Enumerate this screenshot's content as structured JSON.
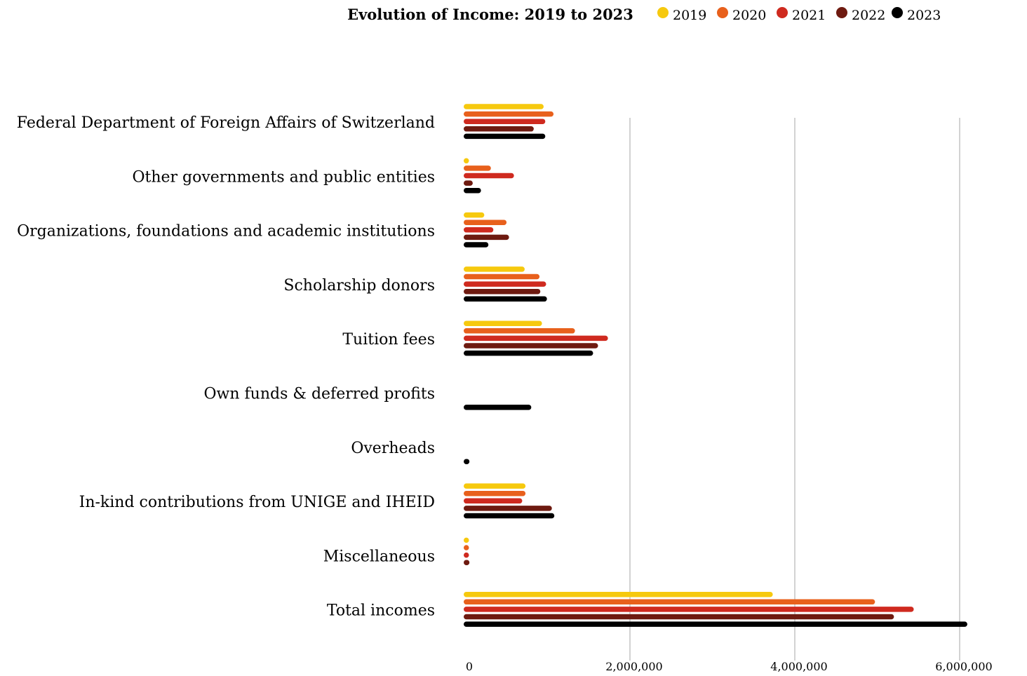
{
  "chart_data": {
    "type": "bar",
    "orientation": "horizontal",
    "title": "Evolution of Income: 2019 to 2023",
    "xlabel": "",
    "ylabel": "",
    "xlim": [
      0,
      6000000
    ],
    "x_ticks": [
      0,
      2000000,
      4000000,
      6000000
    ],
    "x_tick_labels": [
      "0",
      "2,000,000",
      "4,000,000",
      "6,000,000"
    ],
    "grid": "vertical",
    "legend_position": "top-right",
    "categories": [
      "Federal Department of Foreign Affairs of Switzerland",
      "Other governments and public entities",
      "Organizations, foundations and  academic institutions",
      "Scholarship donors",
      "Tuition fees",
      "Own funds & deferred profits",
      "Overheads",
      "In-kind contributions from UNIGE and IHEID",
      "Miscellaneous",
      "Total incomes"
    ],
    "series": [
      {
        "name": "2019",
        "color": "#f6c90e",
        "values": [
          970000,
          30000,
          250000,
          740000,
          950000,
          0,
          0,
          750000,
          30000,
          3750000
        ]
      },
      {
        "name": "2020",
        "color": "#e8601c",
        "values": [
          1090000,
          330000,
          520000,
          920000,
          1350000,
          0,
          0,
          750000,
          40000,
          4990000
        ]
      },
      {
        "name": "2021",
        "color": "#cf2a1f",
        "values": [
          990000,
          610000,
          360000,
          1000000,
          1750000,
          0,
          0,
          710000,
          40000,
          5460000
        ]
      },
      {
        "name": "2022",
        "color": "#6e1a10",
        "values": [
          850000,
          110000,
          550000,
          930000,
          1630000,
          0,
          0,
          1070000,
          70000,
          5220000
        ]
      },
      {
        "name": "2023",
        "color": "#000000",
        "values": [
          990000,
          210000,
          300000,
          1010000,
          1570000,
          820000,
          70000,
          1100000,
          0,
          6110000
        ]
      }
    ]
  }
}
